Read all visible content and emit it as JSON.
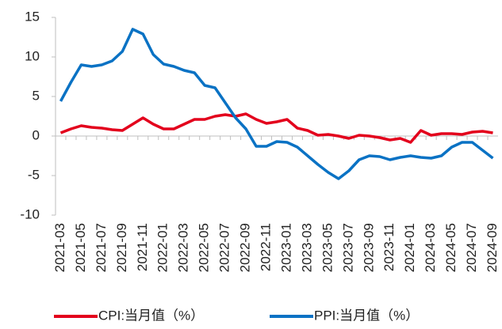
{
  "chart_data": {
    "type": "line",
    "categories": [
      "2021-03",
      null,
      "2021-05",
      null,
      "2021-07",
      null,
      "2021-09",
      null,
      "2021-11",
      null,
      "2022-01",
      null,
      "2022-03",
      null,
      "2022-05",
      null,
      "2022-07",
      null,
      "2022-09",
      null,
      "2022-11",
      null,
      "2023-01",
      null,
      "2023-03",
      null,
      "2023-05",
      null,
      "2023-07",
      null,
      "2023-09",
      null,
      "2023-11",
      null,
      "2024-01",
      null,
      "2024-03",
      null,
      "2024-05",
      null,
      "2024-07",
      null,
      "2024-09"
    ],
    "series": [
      {
        "name": "CPI:当月值（%）",
        "color": "#e3001c",
        "values": [
          0.4,
          0.9,
          1.3,
          1.1,
          1.0,
          0.8,
          0.7,
          1.5,
          2.3,
          1.5,
          0.9,
          0.9,
          1.5,
          2.1,
          2.1,
          2.5,
          2.7,
          2.5,
          2.8,
          2.1,
          1.6,
          1.8,
          2.1,
          1.0,
          0.7,
          0.1,
          0.2,
          0.0,
          -0.3,
          0.1,
          0.0,
          -0.2,
          -0.5,
          -0.3,
          -0.8,
          0.7,
          0.1,
          0.3,
          0.3,
          0.2,
          0.5,
          0.6,
          0.4
        ]
      },
      {
        "name": "PPI:当月值（%）",
        "color": "#0a72c4",
        "values": [
          4.4,
          6.8,
          9.0,
          8.8,
          9.0,
          9.5,
          10.7,
          13.5,
          12.9,
          10.3,
          9.1,
          8.8,
          8.3,
          8.0,
          6.4,
          6.1,
          4.2,
          2.3,
          0.9,
          -1.3,
          -1.3,
          -0.7,
          -0.8,
          -1.4,
          -2.5,
          -3.6,
          -4.6,
          -5.4,
          -4.4,
          -3.0,
          -2.5,
          -2.6,
          -3.0,
          -2.7,
          -2.5,
          -2.7,
          -2.8,
          -2.5,
          -1.4,
          -0.8,
          -0.8,
          -1.8,
          -2.8
        ]
      }
    ],
    "ylim": [
      -10,
      15
    ],
    "yticks": [
      -10,
      -5,
      0,
      5,
      10,
      15
    ],
    "grid": false
  }
}
